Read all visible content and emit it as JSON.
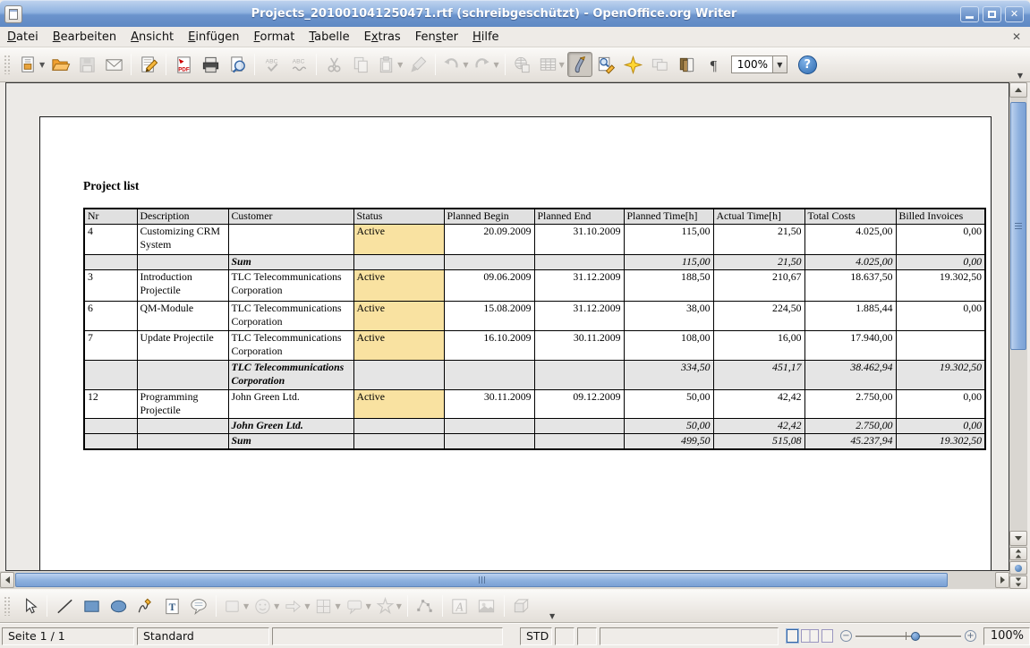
{
  "window": {
    "title": "Projects_201001041250471.rtf (schreibgeschützt) - OpenOffice.org Writer",
    "controls": [
      {
        "name": "minimize-button",
        "icon": "minimize-icon"
      },
      {
        "name": "maximize-button",
        "icon": "maximize-icon"
      },
      {
        "name": "close-button",
        "icon": "close-icon"
      }
    ]
  },
  "menubar": {
    "items": [
      {
        "label": "Datei",
        "accel": 0
      },
      {
        "label": "Bearbeiten",
        "accel": 0
      },
      {
        "label": "Ansicht",
        "accel": 0
      },
      {
        "label": "Einfügen",
        "accel": 0
      },
      {
        "label": "Format",
        "accel": 0
      },
      {
        "label": "Tabelle",
        "accel": 0
      },
      {
        "label": "Extras",
        "accel": 1
      },
      {
        "label": "Fenster",
        "accel": 3
      },
      {
        "label": "Hilfe",
        "accel": 0
      }
    ],
    "close_document_label": "✕"
  },
  "toolbar": {
    "zoom_value": "100%",
    "help_label": "?",
    "items": [
      {
        "type": "button",
        "name": "new-document",
        "icon": "new-doc-icon",
        "dropdown": true
      },
      {
        "type": "button",
        "name": "open",
        "icon": "folder-open-icon"
      },
      {
        "type": "button",
        "name": "save",
        "icon": "save-icon",
        "disabled": true
      },
      {
        "type": "button",
        "name": "email-document",
        "icon": "email-icon"
      },
      {
        "type": "sep"
      },
      {
        "type": "button",
        "name": "edit-file",
        "icon": "edit-doc-icon"
      },
      {
        "type": "sep"
      },
      {
        "type": "button",
        "name": "export-pdf",
        "icon": "pdf-icon"
      },
      {
        "type": "button",
        "name": "print",
        "icon": "printer-icon"
      },
      {
        "type": "button",
        "name": "page-preview",
        "icon": "preview-icon"
      },
      {
        "type": "sep"
      },
      {
        "type": "button",
        "name": "spellcheck",
        "icon": "spellcheck-icon",
        "disabled": true
      },
      {
        "type": "button",
        "name": "auto-spellcheck",
        "icon": "autospell-icon",
        "disabled": true
      },
      {
        "type": "sep"
      },
      {
        "type": "button",
        "name": "cut",
        "icon": "scissors-icon",
        "disabled": true
      },
      {
        "type": "button",
        "name": "copy",
        "icon": "copy-icon",
        "disabled": true
      },
      {
        "type": "button",
        "name": "paste",
        "icon": "paste-icon",
        "disabled": true,
        "dropdown": true
      },
      {
        "type": "button",
        "name": "format-paintbrush",
        "icon": "paintbrush-icon",
        "disabled": true
      },
      {
        "type": "sep"
      },
      {
        "type": "button",
        "name": "undo",
        "icon": "undo-icon",
        "disabled": true,
        "dropdown": true
      },
      {
        "type": "button",
        "name": "redo",
        "icon": "redo-icon",
        "disabled": true,
        "dropdown": true
      },
      {
        "type": "sep"
      },
      {
        "type": "button",
        "name": "hyperlink",
        "icon": "globe-icon",
        "disabled": true
      },
      {
        "type": "button",
        "name": "insert-table",
        "icon": "table-icon",
        "disabled": true,
        "dropdown": true
      },
      {
        "type": "button",
        "name": "show-draw-functions",
        "icon": "drawing-icon",
        "pressed": true
      },
      {
        "type": "button",
        "name": "find-replace",
        "icon": "find-replace-icon"
      },
      {
        "type": "button",
        "name": "navigator",
        "icon": "navigator-star-icon"
      },
      {
        "type": "button",
        "name": "gallery",
        "icon": "gallery-icon",
        "disabled": true
      },
      {
        "type": "button",
        "name": "data-sources",
        "icon": "data-sources-icon"
      },
      {
        "type": "button",
        "name": "nonprinting-characters",
        "icon": "pilcrow-icon"
      },
      {
        "type": "zoom"
      },
      {
        "type": "help"
      },
      {
        "type": "overflow"
      }
    ]
  },
  "document": {
    "heading": "Project list",
    "table": {
      "columns": [
        "Nr",
        "Description",
        "Customer",
        "Status",
        "Planned Begin",
        "Planned End",
        "Planned Time[h]",
        "Actual Time[h]",
        "Total Costs",
        "Billed Invoices"
      ],
      "rows": [
        {
          "type": "data",
          "cells": [
            "4",
            "Customizing CRM System",
            "",
            "Active",
            "20.09.2009",
            "31.10.2009",
            "115,00",
            "21,50",
            "4.025,00",
            "0,00"
          ]
        },
        {
          "type": "sum",
          "cells": [
            "",
            "",
            "Sum",
            "",
            "",
            "",
            "115,00",
            "21,50",
            "4.025,00",
            "0,00"
          ]
        },
        {
          "type": "data",
          "cells": [
            "3",
            "Introduction Projectile",
            "TLC Telecommunications Corporation",
            "Active",
            "09.06.2009",
            "31.12.2009",
            "188,50",
            "210,67",
            "18.637,50",
            "19.302,50"
          ]
        },
        {
          "type": "data",
          "cells": [
            "6",
            "QM-Module",
            "TLC Telecommunications Corporation",
            "Active",
            "15.08.2009",
            "31.12.2009",
            "38,00",
            "224,50",
            "1.885,44",
            "0,00"
          ]
        },
        {
          "type": "data",
          "cells": [
            "7",
            "Update Projectile",
            "TLC Telecommunications Corporation",
            "Active",
            "16.10.2009",
            "30.11.2009",
            "108,00",
            "16,00",
            "17.940,00",
            ""
          ]
        },
        {
          "type": "sum",
          "cells": [
            "",
            "",
            "TLC Telecommunications Corporation",
            "",
            "",
            "",
            "334,50",
            "451,17",
            "38.462,94",
            "19.302,50"
          ]
        },
        {
          "type": "data",
          "cells": [
            "12",
            "Programming Projectile",
            "John Green Ltd.",
            "Active",
            "30.11.2009",
            "09.12.2009",
            "50,00",
            "42,42",
            "2.750,00",
            "0,00"
          ]
        },
        {
          "type": "sum",
          "cells": [
            "",
            "",
            "John Green Ltd.",
            "",
            "",
            "",
            "50,00",
            "42,42",
            "2.750,00",
            "0,00"
          ]
        },
        {
          "type": "sum",
          "cells": [
            "",
            "",
            "Sum",
            "",
            "",
            "",
            "499,50",
            "515,08",
            "45.237,94",
            "19.302,50"
          ]
        }
      ]
    }
  },
  "drawing": {
    "items": [
      {
        "type": "button",
        "name": "select",
        "icon": "select-arrow-icon"
      },
      {
        "type": "sep"
      },
      {
        "type": "button",
        "name": "line",
        "icon": "line-icon"
      },
      {
        "type": "button",
        "name": "rectangle",
        "icon": "rectangle-icon"
      },
      {
        "type": "button",
        "name": "ellipse",
        "icon": "ellipse-icon"
      },
      {
        "type": "button",
        "name": "freeform-line",
        "icon": "freeform-icon"
      },
      {
        "type": "button",
        "name": "text-box",
        "icon": "textbox-icon"
      },
      {
        "type": "button",
        "name": "callout",
        "icon": "callout-icon"
      },
      {
        "type": "sep"
      },
      {
        "type": "button",
        "name": "basic-shapes",
        "icon": "basic-shapes-icon",
        "disabled": true,
        "dropdown": true
      },
      {
        "type": "button",
        "name": "symbol-shapes",
        "icon": "symbol-shapes-icon",
        "disabled": true,
        "dropdown": true
      },
      {
        "type": "button",
        "name": "block-arrows",
        "icon": "block-arrows-icon",
        "disabled": true,
        "dropdown": true
      },
      {
        "type": "button",
        "name": "flowchart",
        "icon": "flowchart-icon",
        "disabled": true,
        "dropdown": true
      },
      {
        "type": "button",
        "name": "callout-shapes",
        "icon": "callout-shapes-icon",
        "disabled": true,
        "dropdown": true
      },
      {
        "type": "button",
        "name": "stars",
        "icon": "star-icon",
        "disabled": true,
        "dropdown": true
      },
      {
        "type": "sep"
      },
      {
        "type": "button",
        "name": "edit-points",
        "icon": "edit-points-icon",
        "disabled": true
      },
      {
        "type": "sep"
      },
      {
        "type": "button",
        "name": "fontwork-gallery",
        "icon": "fontwork-icon",
        "disabled": true
      },
      {
        "type": "button",
        "name": "picture-from-file",
        "icon": "picture-icon",
        "disabled": true
      },
      {
        "type": "sep"
      },
      {
        "type": "button",
        "name": "extrusion-toggle",
        "icon": "extrusion-icon",
        "disabled": true
      },
      {
        "type": "overflow2"
      }
    ]
  },
  "statusbar": {
    "fields": [
      {
        "name": "page-indicator",
        "text": "Seite 1 / 1"
      },
      {
        "name": "page-style",
        "text": "Standard"
      },
      {
        "name": "spacer-wide",
        "text": ""
      },
      {
        "name": "insert-mode",
        "text": "STD"
      },
      {
        "name": "selection-mode",
        "text": ""
      },
      {
        "name": "modified-flag",
        "text": ""
      },
      {
        "name": "spacer-right",
        "text": ""
      }
    ],
    "zoom_level": "100%",
    "view_icons": [
      "single-page-view-icon",
      "multi-page-view-icon",
      "book-view-icon"
    ]
  },
  "colors": {
    "active_cell_bg": "#f9e2a1",
    "header_bg": "#e0e0e0",
    "sum_bg": "#e5e5e5",
    "titlebar_blue": "#6b93cc",
    "scrollbar_thumb": "#8db0de"
  }
}
